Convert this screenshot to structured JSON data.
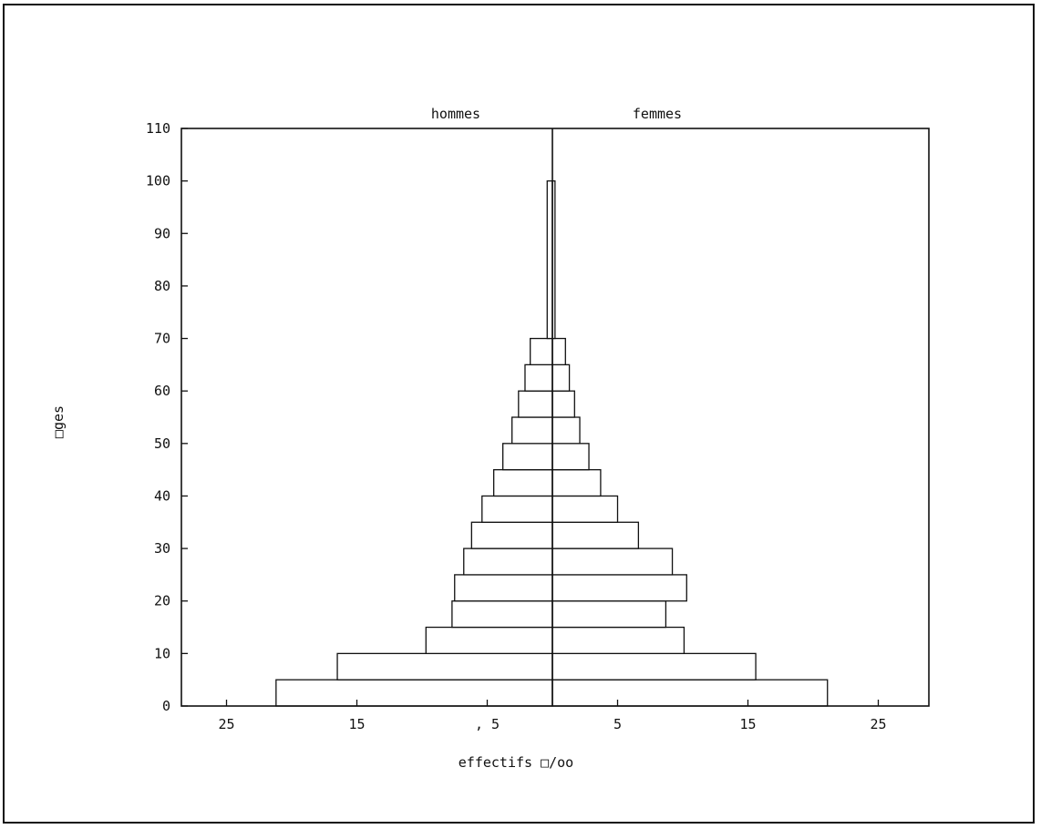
{
  "chart_data": {
    "type": "bar",
    "orientation": "horizontal-pyramid",
    "left_label": "hommes",
    "right_label": "femmes",
    "xlabel": "effectifs □/oo",
    "ylabel": "□ges",
    "ylim": [
      0,
      110
    ],
    "xlim": [
      -29,
      29
    ],
    "y_ticks": [
      "0",
      "10",
      "20",
      "30",
      "40",
      "50",
      "60",
      "70",
      "80",
      "90",
      "100",
      "110"
    ],
    "x_ticks": [
      {
        "value": -25,
        "label": "25"
      },
      {
        "value": -15,
        "label": "15"
      },
      {
        "value": -5,
        "label": ", 5"
      },
      {
        "value": 5,
        "label": "5"
      },
      {
        "value": 15,
        "label": "15"
      },
      {
        "value": 25,
        "label": "25"
      }
    ],
    "age_groups": [
      {
        "from": 0,
        "to": 5,
        "hommes": 21.2,
        "femmes": 21.1
      },
      {
        "from": 5,
        "to": 10,
        "hommes": 16.5,
        "femmes": 15.6
      },
      {
        "from": 10,
        "to": 15,
        "hommes": 9.7,
        "femmes": 10.1
      },
      {
        "from": 15,
        "to": 20,
        "hommes": 7.7,
        "femmes": 8.7
      },
      {
        "from": 20,
        "to": 25,
        "hommes": 7.5,
        "femmes": 10.3
      },
      {
        "from": 25,
        "to": 30,
        "hommes": 6.8,
        "femmes": 9.2
      },
      {
        "from": 30,
        "to": 35,
        "hommes": 6.2,
        "femmes": 6.6
      },
      {
        "from": 35,
        "to": 40,
        "hommes": 5.4,
        "femmes": 5.0
      },
      {
        "from": 40,
        "to": 45,
        "hommes": 4.5,
        "femmes": 3.7
      },
      {
        "from": 45,
        "to": 50,
        "hommes": 3.8,
        "femmes": 2.8
      },
      {
        "from": 50,
        "to": 55,
        "hommes": 3.1,
        "femmes": 2.1
      },
      {
        "from": 55,
        "to": 60,
        "hommes": 2.6,
        "femmes": 1.7
      },
      {
        "from": 60,
        "to": 65,
        "hommes": 2.1,
        "femmes": 1.3
      },
      {
        "from": 65,
        "to": 70,
        "hommes": 1.7,
        "femmes": 1.0
      },
      {
        "from": 70,
        "to": 100,
        "hommes": 0.4,
        "femmes": 0.2
      }
    ]
  }
}
